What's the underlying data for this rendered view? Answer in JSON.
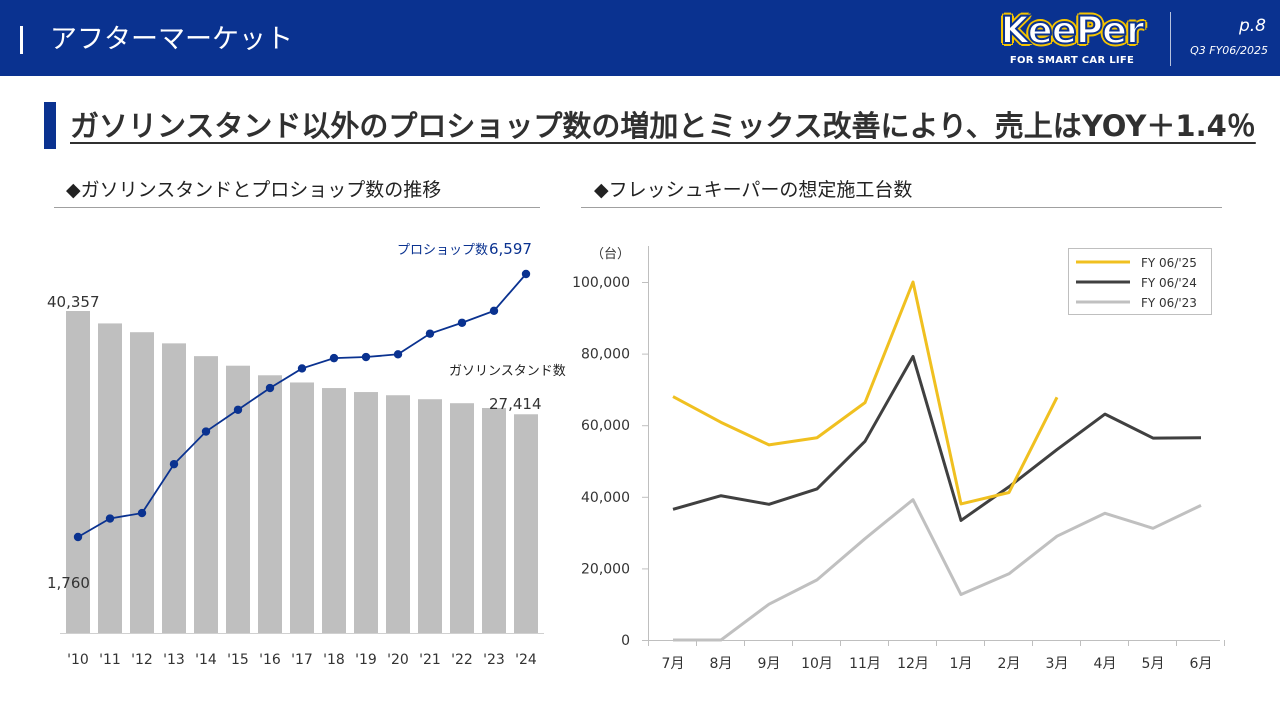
{
  "header": {
    "title": "アフターマーケット",
    "logo_text": "KeePer",
    "logo_tagline": "FOR SMART CAR LIFE",
    "page": "p.8",
    "period": "Q3 FY06/2025"
  },
  "headline": "ガソリンスタンド以外のプロショップ数の増加とミックス改善により、売上はYOY＋1.4％",
  "left_section": {
    "title": "◆ガソリンスタンドとプロショップ数の推移"
  },
  "right_section": {
    "title": "◆フレッシュキーパーの想定施工台数"
  },
  "chart_data": [
    {
      "type": "bar",
      "categories": [
        "'10",
        "'11",
        "'12",
        "'13",
        "'14",
        "'15",
        "'16",
        "'17",
        "'18",
        "'19",
        "'20",
        "'21",
        "'22",
        "'23",
        "'24"
      ],
      "series": [
        {
          "name": "ガソリンスタンド数",
          "type": "bar",
          "color": "#bfbfbf",
          "values": [
            40357,
            38800,
            37700,
            36300,
            34700,
            33500,
            32300,
            31400,
            30700,
            30200,
            29800,
            29300,
            28800,
            28200,
            27414
          ]
        },
        {
          "name": "プロショップ数",
          "type": "line",
          "color": "#0a3290",
          "values": [
            1760,
            2100,
            2200,
            3100,
            3700,
            4100,
            4500,
            4860,
            5050,
            5070,
            5120,
            5500,
            5700,
            5920,
            6597
          ]
        }
      ],
      "data_labels": {
        "bar_first": "40,357",
        "bar_last": "27,414",
        "line_first": "1,760",
        "line_last": "6,597"
      },
      "series_labels": {
        "line": "プロショップ数",
        "bar": "ガソリンスタンド数"
      }
    },
    {
      "type": "line",
      "categories": [
        "7月",
        "8月",
        "9月",
        "10月",
        "11月",
        "12月",
        "1月",
        "2月",
        "3月",
        "4月",
        "5月",
        "6月"
      ],
      "yunit": "（台）",
      "ylim": [
        0,
        100000
      ],
      "yticks": [
        0,
        20000,
        40000,
        60000,
        80000,
        100000
      ],
      "ytick_labels": [
        "0",
        "20,000",
        "40,000",
        "60,000",
        "80,000",
        "100,000"
      ],
      "legend_position": "top-right",
      "series": [
        {
          "name": "FY 06/'25",
          "color": "#f0c020",
          "values": [
            68000,
            60800,
            54500,
            56500,
            66300,
            100000,
            38000,
            41200,
            67800,
            null,
            null,
            null
          ]
        },
        {
          "name": "FY 06/'24",
          "color": "#404040",
          "values": [
            36500,
            40300,
            37900,
            42200,
            55500,
            79200,
            33400,
            42800,
            53200,
            63100,
            56400,
            56500
          ]
        },
        {
          "name": "FY 06/'23",
          "color": "#c0c0c0",
          "values": [
            0,
            0,
            10000,
            16800,
            28300,
            39200,
            12700,
            18500,
            29000,
            35400,
            31200,
            37600
          ]
        }
      ]
    }
  ]
}
